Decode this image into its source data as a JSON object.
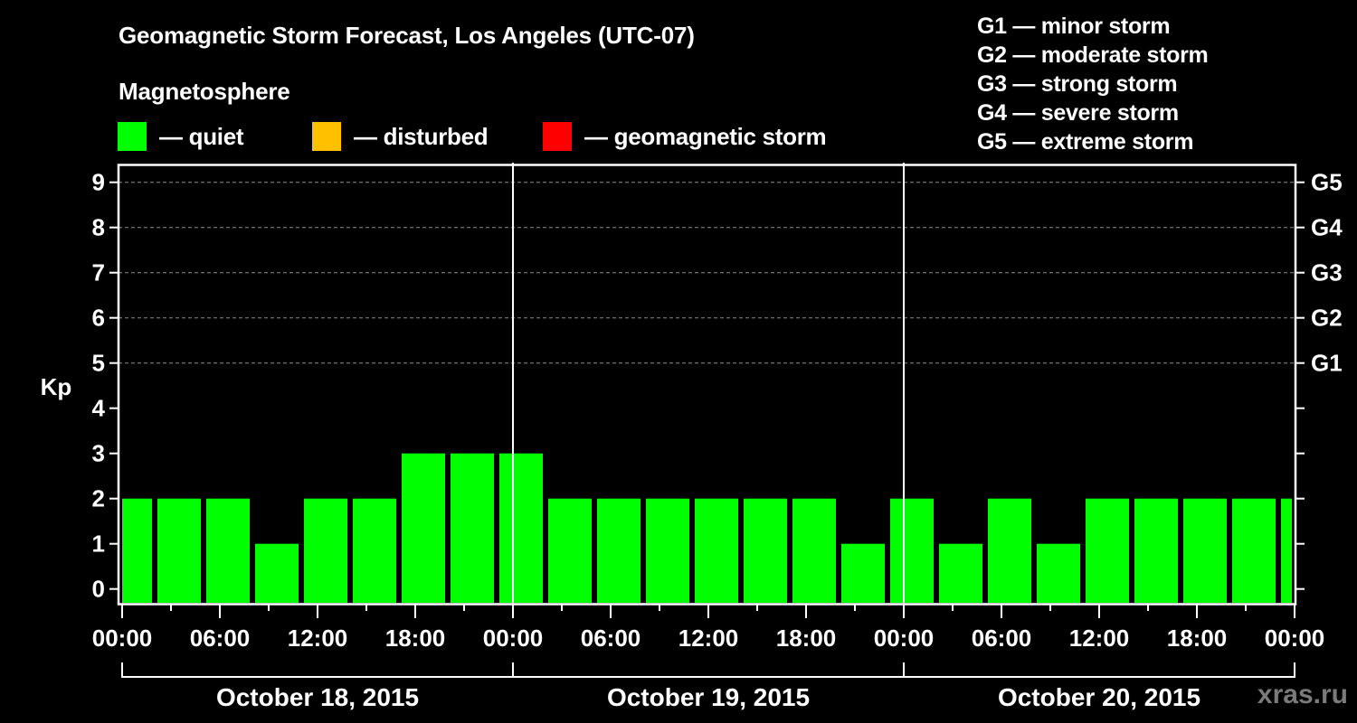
{
  "header": {
    "title": "Geomagnetic Storm Forecast, Los Angeles (UTC-07)",
    "subtitle": "Magnetosphere"
  },
  "legend": [
    {
      "label": "— quiet",
      "color": "#00ff00"
    },
    {
      "label": "— disturbed",
      "color": "#ffc000"
    },
    {
      "label": "— geomagnetic storm",
      "color": "#ff0000"
    }
  ],
  "storm_scale": [
    {
      "label": "G1 — minor storm"
    },
    {
      "label": "G2 — moderate storm"
    },
    {
      "label": "G3 — strong storm"
    },
    {
      "label": "G4 — severe storm"
    },
    {
      "label": "G5 — extreme storm"
    }
  ],
  "watermark": "xras.ru",
  "colors": {
    "background": "#000000",
    "axis": "#ffffff",
    "grid": "#8c8c8c",
    "quiet": "#00ff00",
    "disturbed": "#ffc000",
    "storm": "#ff0000"
  },
  "chart_data": {
    "type": "bar",
    "title": "Geomagnetic Storm Forecast, Los Angeles (UTC-07)",
    "xlabel": "",
    "ylabel": "Kp",
    "ylim": [
      0,
      9
    ],
    "yticks": [
      0,
      1,
      2,
      3,
      4,
      5,
      6,
      7,
      8,
      9
    ],
    "right_axis_labels": [
      {
        "kp": 5,
        "label": "G1"
      },
      {
        "kp": 6,
        "label": "G2"
      },
      {
        "kp": 7,
        "label": "G3"
      },
      {
        "kp": 8,
        "label": "G4"
      },
      {
        "kp": 9,
        "label": "G5"
      }
    ],
    "grid": {
      "horizontal_dashed_at": [
        5,
        6,
        7,
        8,
        9
      ]
    },
    "xtick_labels": [
      "00:00",
      "06:00",
      "12:00",
      "18:00",
      "00:00",
      "06:00",
      "12:00",
      "18:00",
      "00:00",
      "06:00",
      "12:00",
      "18:00",
      "00:00"
    ],
    "days": [
      "October 18, 2015",
      "October 19, 2015",
      "October 20, 2015"
    ],
    "interval_hours": 3,
    "categories": [
      "Oct 18 ~00:00",
      "Oct 18 ~03:00",
      "Oct 18 ~06:00",
      "Oct 18 ~09:00",
      "Oct 18 ~12:00",
      "Oct 18 ~15:00",
      "Oct 18 ~18:00",
      "Oct 18 ~21:00",
      "Oct 19 ~00:00",
      "Oct 19 ~03:00",
      "Oct 19 ~06:00",
      "Oct 19 ~09:00",
      "Oct 19 ~12:00",
      "Oct 19 ~15:00",
      "Oct 19 ~18:00",
      "Oct 19 ~21:00",
      "Oct 20 ~00:00",
      "Oct 20 ~03:00",
      "Oct 20 ~06:00",
      "Oct 20 ~09:00",
      "Oct 20 ~12:00",
      "Oct 20 ~15:00",
      "Oct 20 ~18:00",
      "Oct 20 ~21:00",
      "Oct 21 ~00:00"
    ],
    "values": [
      2,
      2,
      2,
      1,
      2,
      2,
      3,
      3,
      3,
      2,
      2,
      2,
      2,
      2,
      2,
      1,
      2,
      1,
      2,
      1,
      2,
      2,
      2,
      2,
      2
    ],
    "bar_status": "quiet",
    "legend": [
      "quiet",
      "disturbed",
      "geomagnetic storm"
    ],
    "legend_position": "top"
  }
}
